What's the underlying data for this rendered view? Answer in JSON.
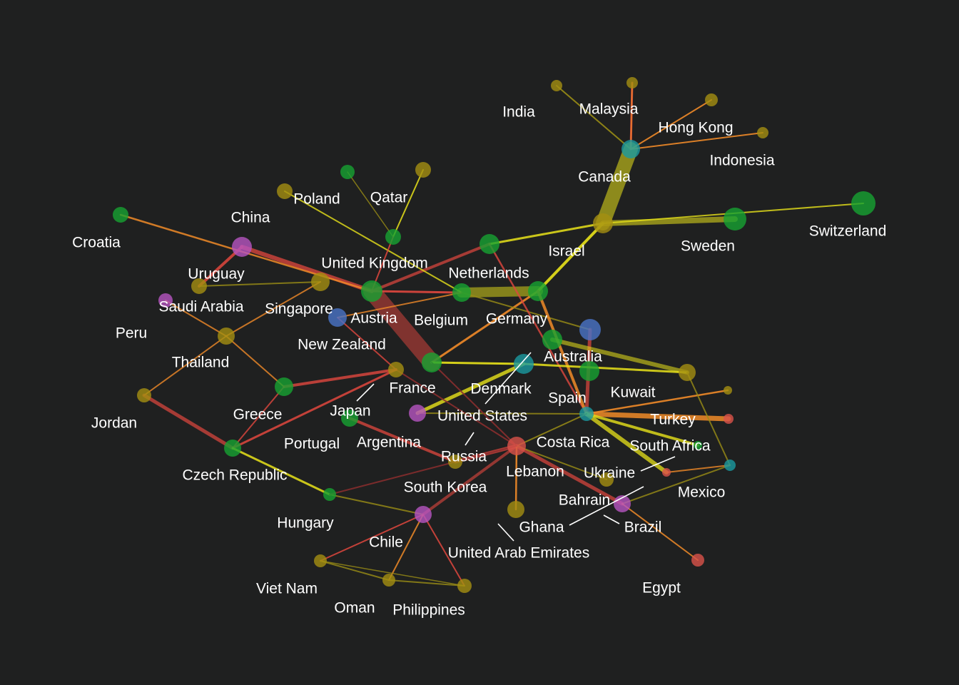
{
  "colors": {
    "background": "#1f2020",
    "label": "#ffffff",
    "node_green": "#16a332",
    "node_olive": "#a48e12",
    "node_teal": "#1a9aa0",
    "node_blue": "#4a74c8",
    "node_purple": "#b655c2",
    "node_red": "#d9524a",
    "edge_red": "#e0473e",
    "edge_orange": "#f08a28",
    "edge_yellow": "#e8e21a",
    "edge_olive": "#9a8d16",
    "edge_brown": "#8a2e2e"
  },
  "labels": {
    "india": "India",
    "malaysia": "Malaysia",
    "hong_kong": "Hong Kong",
    "indonesia": "Indonesia",
    "canada": "Canada",
    "switzerland": "Switzerland",
    "sweden": "Sweden",
    "israel": "Israel",
    "poland": "Poland",
    "qatar": "Qatar",
    "china": "China",
    "croatia": "Croatia",
    "united_kingdom": "United Kingdom",
    "uruguay": "Uruguay",
    "netherlands": "Netherlands",
    "saudi_arabia": "Saudi Arabia",
    "singapore": "Singapore",
    "austria": "Austria",
    "belgium": "Belgium",
    "germany": "Germany",
    "peru": "Peru",
    "new_zealand": "New Zealand",
    "australia": "Australia",
    "thailand": "Thailand",
    "france": "France",
    "denmark": "Denmark",
    "kuwait": "Kuwait",
    "jordan": "Jordan",
    "greece": "Greece",
    "japan": "Japan",
    "united_states": "United States",
    "spain": "Spain",
    "turkey": "Turkey",
    "portugal": "Portugal",
    "argentina": "Argentina",
    "russia": "Russia",
    "costa_rica": "Costa Rica",
    "south_africa": "South Africa",
    "czech_republic": "Czech Republic",
    "lebanon": "Lebanon",
    "ukraine": "Ukraine",
    "mexico": "Mexico",
    "south_korea": "South Korea",
    "bahrain": "Bahrain",
    "hungary": "Hungary",
    "ghana": "Ghana",
    "brazil": "Brazil",
    "chile": "Chile",
    "united_arab_emirates": "United Arab Emirates",
    "egypt": "Egypt",
    "viet_nam": "Viet Nam",
    "oman": "Oman",
    "philippines": "Philippines"
  }
}
